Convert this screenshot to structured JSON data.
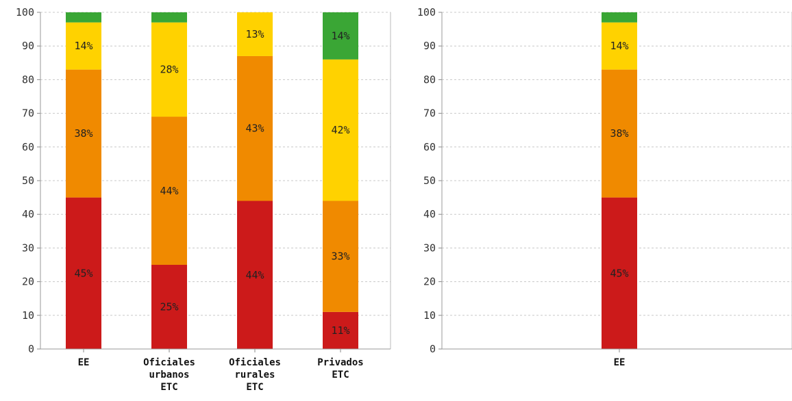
{
  "chart_data": [
    {
      "type": "bar",
      "stacked": true,
      "title": "",
      "xlabel": "",
      "ylabel": "",
      "ylim": [
        0,
        100
      ],
      "yticks": [
        0,
        10,
        20,
        30,
        40,
        50,
        60,
        70,
        80,
        90,
        100
      ],
      "grid": true,
      "categories": [
        [
          "EE"
        ],
        [
          "Oficiales",
          "urbanos",
          "ETC"
        ],
        [
          "Oficiales",
          "rurales",
          "ETC"
        ],
        [
          "Privados",
          "ETC"
        ]
      ],
      "series": [
        {
          "color": "#cc1a1a",
          "values": [
            45,
            25,
            44,
            11
          ],
          "labels": [
            "45%",
            "25%",
            "44%",
            "11%"
          ]
        },
        {
          "color": "#f08a00",
          "values": [
            38,
            44,
            43,
            33
          ],
          "labels": [
            "38%",
            "44%",
            "43%",
            "33%"
          ]
        },
        {
          "color": "#ffd200",
          "values": [
            14,
            28,
            13,
            42
          ],
          "labels": [
            "14%",
            "28%",
            "13%",
            "42%"
          ]
        },
        {
          "color": "#3aa635",
          "values": [
            3,
            3,
            0,
            14
          ],
          "labels": [
            "",
            "",
            "",
            "14%"
          ]
        }
      ]
    },
    {
      "type": "bar",
      "stacked": true,
      "title": "",
      "xlabel": "",
      "ylabel": "",
      "ylim": [
        0,
        100
      ],
      "yticks": [
        0,
        10,
        20,
        30,
        40,
        50,
        60,
        70,
        80,
        90,
        100
      ],
      "grid": true,
      "categories": [
        [
          "EE"
        ]
      ],
      "series": [
        {
          "color": "#cc1a1a",
          "values": [
            45
          ],
          "labels": [
            "45%"
          ]
        },
        {
          "color": "#f08a00",
          "values": [
            38
          ],
          "labels": [
            "38%"
          ]
        },
        {
          "color": "#ffd200",
          "values": [
            14
          ],
          "labels": [
            "14%"
          ]
        },
        {
          "color": "#3aa635",
          "values": [
            3
          ],
          "labels": [
            ""
          ]
        }
      ]
    }
  ]
}
